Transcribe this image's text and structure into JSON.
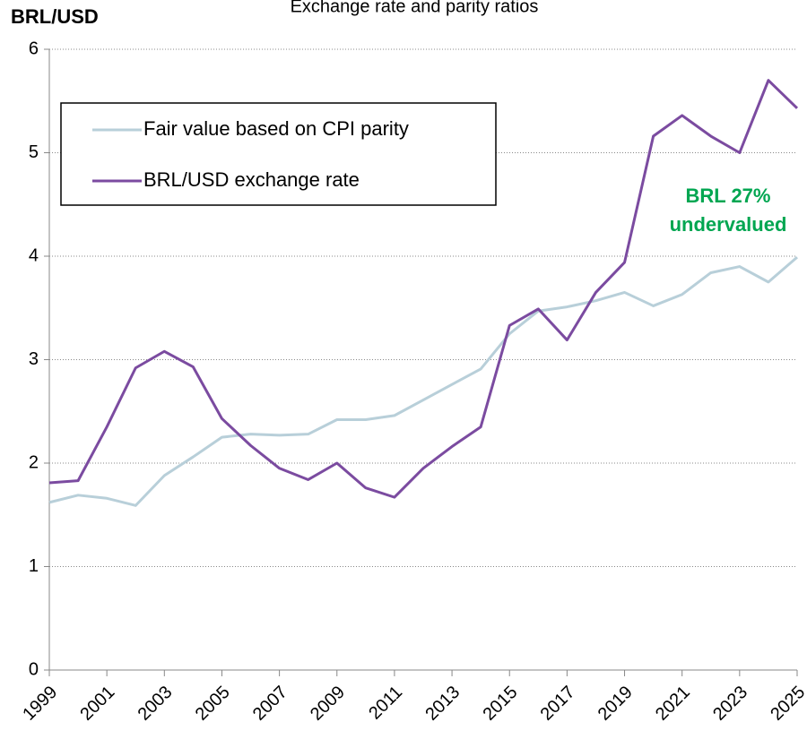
{
  "chart_data": {
    "type": "line",
    "title": "Exchange rate and parity ratios",
    "y_label": "BRL/USD",
    "annotation": [
      "BRL 27%",
      "undervalued"
    ],
    "annotation_color": "#00a651",
    "x": [
      1999,
      2000,
      2001,
      2002,
      2003,
      2004,
      2005,
      2006,
      2007,
      2008,
      2009,
      2010,
      2011,
      2012,
      2013,
      2014,
      2015,
      2016,
      2017,
      2018,
      2019,
      2020,
      2021,
      2022,
      2023,
      2024,
      2025
    ],
    "series": [
      {
        "name": "Fair value based on CPI parity",
        "color": "#b8cfd9",
        "values": [
          1.62,
          1.69,
          1.66,
          1.59,
          1.88,
          2.06,
          2.25,
          2.28,
          2.27,
          2.28,
          2.42,
          2.42,
          2.46,
          2.61,
          2.76,
          2.91,
          3.25,
          3.47,
          3.51,
          3.57,
          3.65,
          3.52,
          3.63,
          3.84,
          3.9,
          3.75,
          3.99
        ]
      },
      {
        "name": "BRL/USD exchange rate",
        "color": "#7b4ba0",
        "values": [
          1.81,
          1.83,
          2.35,
          2.92,
          3.08,
          2.93,
          2.43,
          2.17,
          1.95,
          1.84,
          2.0,
          1.76,
          1.67,
          1.95,
          2.16,
          2.35,
          3.33,
          3.49,
          3.19,
          3.65,
          3.94,
          5.16,
          5.36,
          5.16,
          5.0,
          5.7,
          5.43
        ]
      }
    ],
    "xlim": [
      1999,
      2025
    ],
    "xticks": [
      1999,
      2001,
      2003,
      2005,
      2007,
      2009,
      2011,
      2013,
      2015,
      2017,
      2019,
      2021,
      2023,
      2025
    ],
    "ylim": [
      0,
      6
    ],
    "yticks": [
      0,
      1,
      2,
      3,
      4,
      5,
      6
    ],
    "grid": true,
    "legend": "upper left"
  }
}
